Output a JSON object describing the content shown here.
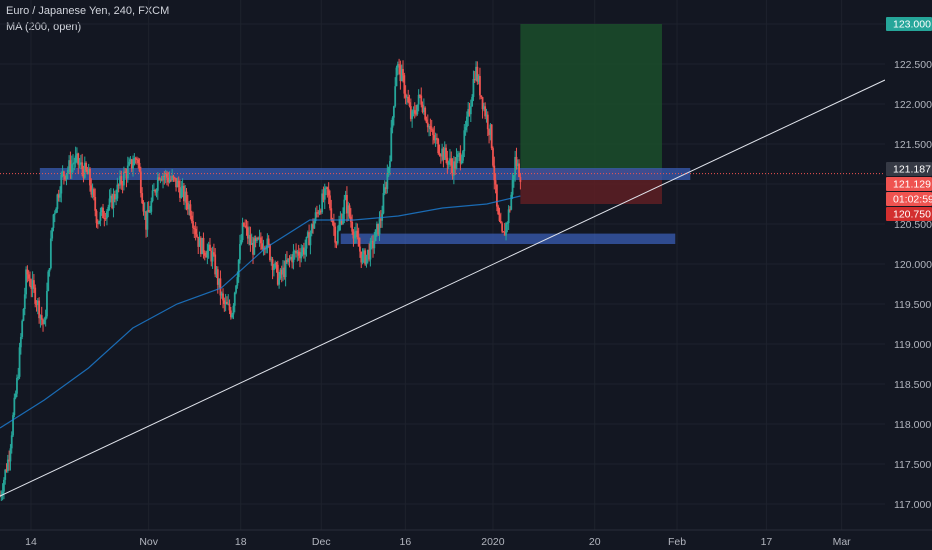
{
  "header": {
    "symbol_line": "Euro / Japanese Yen, 240, FXCM",
    "indicator_line": "MA (200, open)"
  },
  "colors": {
    "background": "#131722",
    "grid": "#1e222d",
    "up": "#26a69a",
    "down": "#ef5350",
    "ma": "#1e88e5",
    "zone": "#3a5eb4",
    "target_box": "#1b4d2a",
    "stop_box": "#5a1e24",
    "trendline": "#e0e3eb",
    "axis_text": "#b2b5be"
  },
  "chart_data": {
    "type": "candlestick",
    "y_range": [
      116.9,
      123.2
    ],
    "y_ticks": [
      "123.000",
      "122.500",
      "122.000",
      "121.500",
      "121.000",
      "120.500",
      "120.000",
      "119.500",
      "119.000",
      "118.500",
      "118.000",
      "117.500",
      "117.000"
    ],
    "y_tick_values": [
      123.0,
      122.5,
      122.0,
      121.5,
      121.0,
      120.5,
      120.0,
      119.5,
      119.0,
      118.5,
      118.0,
      117.5,
      117.0
    ],
    "x_ticks": [
      "14",
      "Nov",
      "18",
      "Dec",
      "16",
      "2020",
      "20",
      "Feb",
      "17",
      "Mar"
    ],
    "x_tick_positions": [
      0.035,
      0.168,
      0.272,
      0.363,
      0.458,
      0.557,
      0.672,
      0.765,
      0.866,
      0.951
    ],
    "price_tags": [
      {
        "label": "123.000",
        "value": 123.0,
        "color": "#26a69a"
      },
      {
        "label": "121.187",
        "value": 121.187,
        "color": "#363a45"
      },
      {
        "label": "121.129",
        "value": 121.129,
        "color": "#ef5350"
      },
      {
        "label": "01:02:59",
        "value": 120.95,
        "color": "#ef5350"
      },
      {
        "label": "120.750",
        "value": 120.75,
        "color": "#d32f2f"
      }
    ],
    "key_prices": {
      "current": 121.129,
      "entry": 121.187,
      "target": 123.0,
      "stop": 120.75
    },
    "anchors": [
      {
        "x": 0.0,
        "y": 117.1
      },
      {
        "x": 0.01,
        "y": 117.6
      },
      {
        "x": 0.02,
        "y": 118.6
      },
      {
        "x": 0.03,
        "y": 119.9
      },
      {
        "x": 0.04,
        "y": 119.6
      },
      {
        "x": 0.05,
        "y": 119.2
      },
      {
        "x": 0.06,
        "y": 120.6
      },
      {
        "x": 0.07,
        "y": 121.1
      },
      {
        "x": 0.085,
        "y": 121.3
      },
      {
        "x": 0.1,
        "y": 121.1
      },
      {
        "x": 0.11,
        "y": 120.55
      },
      {
        "x": 0.125,
        "y": 120.75
      },
      {
        "x": 0.14,
        "y": 121.1
      },
      {
        "x": 0.155,
        "y": 121.35
      },
      {
        "x": 0.165,
        "y": 120.5
      },
      {
        "x": 0.18,
        "y": 121.15
      },
      {
        "x": 0.2,
        "y": 121.0
      },
      {
        "x": 0.215,
        "y": 120.7
      },
      {
        "x": 0.225,
        "y": 120.25
      },
      {
        "x": 0.24,
        "y": 120.1
      },
      {
        "x": 0.252,
        "y": 119.5
      },
      {
        "x": 0.262,
        "y": 119.4
      },
      {
        "x": 0.275,
        "y": 120.5
      },
      {
        "x": 0.285,
        "y": 120.2
      },
      {
        "x": 0.3,
        "y": 120.3
      },
      {
        "x": 0.315,
        "y": 119.8
      },
      {
        "x": 0.33,
        "y": 120.1
      },
      {
        "x": 0.345,
        "y": 120.2
      },
      {
        "x": 0.36,
        "y": 120.7
      },
      {
        "x": 0.37,
        "y": 120.9
      },
      {
        "x": 0.38,
        "y": 120.3
      },
      {
        "x": 0.39,
        "y": 120.8
      },
      {
        "x": 0.4,
        "y": 120.4
      },
      {
        "x": 0.41,
        "y": 120.05
      },
      {
        "x": 0.42,
        "y": 120.2
      },
      {
        "x": 0.43,
        "y": 120.55
      },
      {
        "x": 0.44,
        "y": 121.3
      },
      {
        "x": 0.448,
        "y": 122.5
      },
      {
        "x": 0.455,
        "y": 122.3
      },
      {
        "x": 0.465,
        "y": 121.8
      },
      {
        "x": 0.475,
        "y": 122.1
      },
      {
        "x": 0.488,
        "y": 121.6
      },
      {
        "x": 0.5,
        "y": 121.4
      },
      {
        "x": 0.512,
        "y": 121.2
      },
      {
        "x": 0.522,
        "y": 121.4
      },
      {
        "x": 0.53,
        "y": 121.9
      },
      {
        "x": 0.537,
        "y": 122.45
      },
      {
        "x": 0.546,
        "y": 122.0
      },
      {
        "x": 0.555,
        "y": 121.6
      },
      {
        "x": 0.562,
        "y": 120.6
      },
      {
        "x": 0.568,
        "y": 120.3
      },
      {
        "x": 0.576,
        "y": 120.7
      },
      {
        "x": 0.582,
        "y": 121.3
      },
      {
        "x": 0.588,
        "y": 121.13
      }
    ],
    "ma_points": [
      {
        "x": 0.0,
        "y": 117.95
      },
      {
        "x": 0.05,
        "y": 118.3
      },
      {
        "x": 0.1,
        "y": 118.7
      },
      {
        "x": 0.15,
        "y": 119.2
      },
      {
        "x": 0.2,
        "y": 119.5
      },
      {
        "x": 0.25,
        "y": 119.7
      },
      {
        "x": 0.3,
        "y": 120.2
      },
      {
        "x": 0.35,
        "y": 120.55
      },
      {
        "x": 0.4,
        "y": 120.55
      },
      {
        "x": 0.45,
        "y": 120.6
      },
      {
        "x": 0.5,
        "y": 120.7
      },
      {
        "x": 0.55,
        "y": 120.75
      },
      {
        "x": 0.588,
        "y": 120.85
      }
    ],
    "zones": [
      {
        "name": "resistance-zone",
        "x0": 0.045,
        "x1": 0.78,
        "y_top": 121.2,
        "y_bottom": 121.05
      },
      {
        "name": "support-zone",
        "x0": 0.385,
        "x1": 0.763,
        "y_top": 120.38,
        "y_bottom": 120.25
      }
    ],
    "position": {
      "x0": 0.588,
      "x1": 0.748,
      "target": 123.0,
      "entry": 121.187,
      "stop": 120.75
    },
    "trendline": {
      "x0": 0.0,
      "y0": 117.1,
      "x1": 1.0,
      "y1": 122.3
    }
  }
}
